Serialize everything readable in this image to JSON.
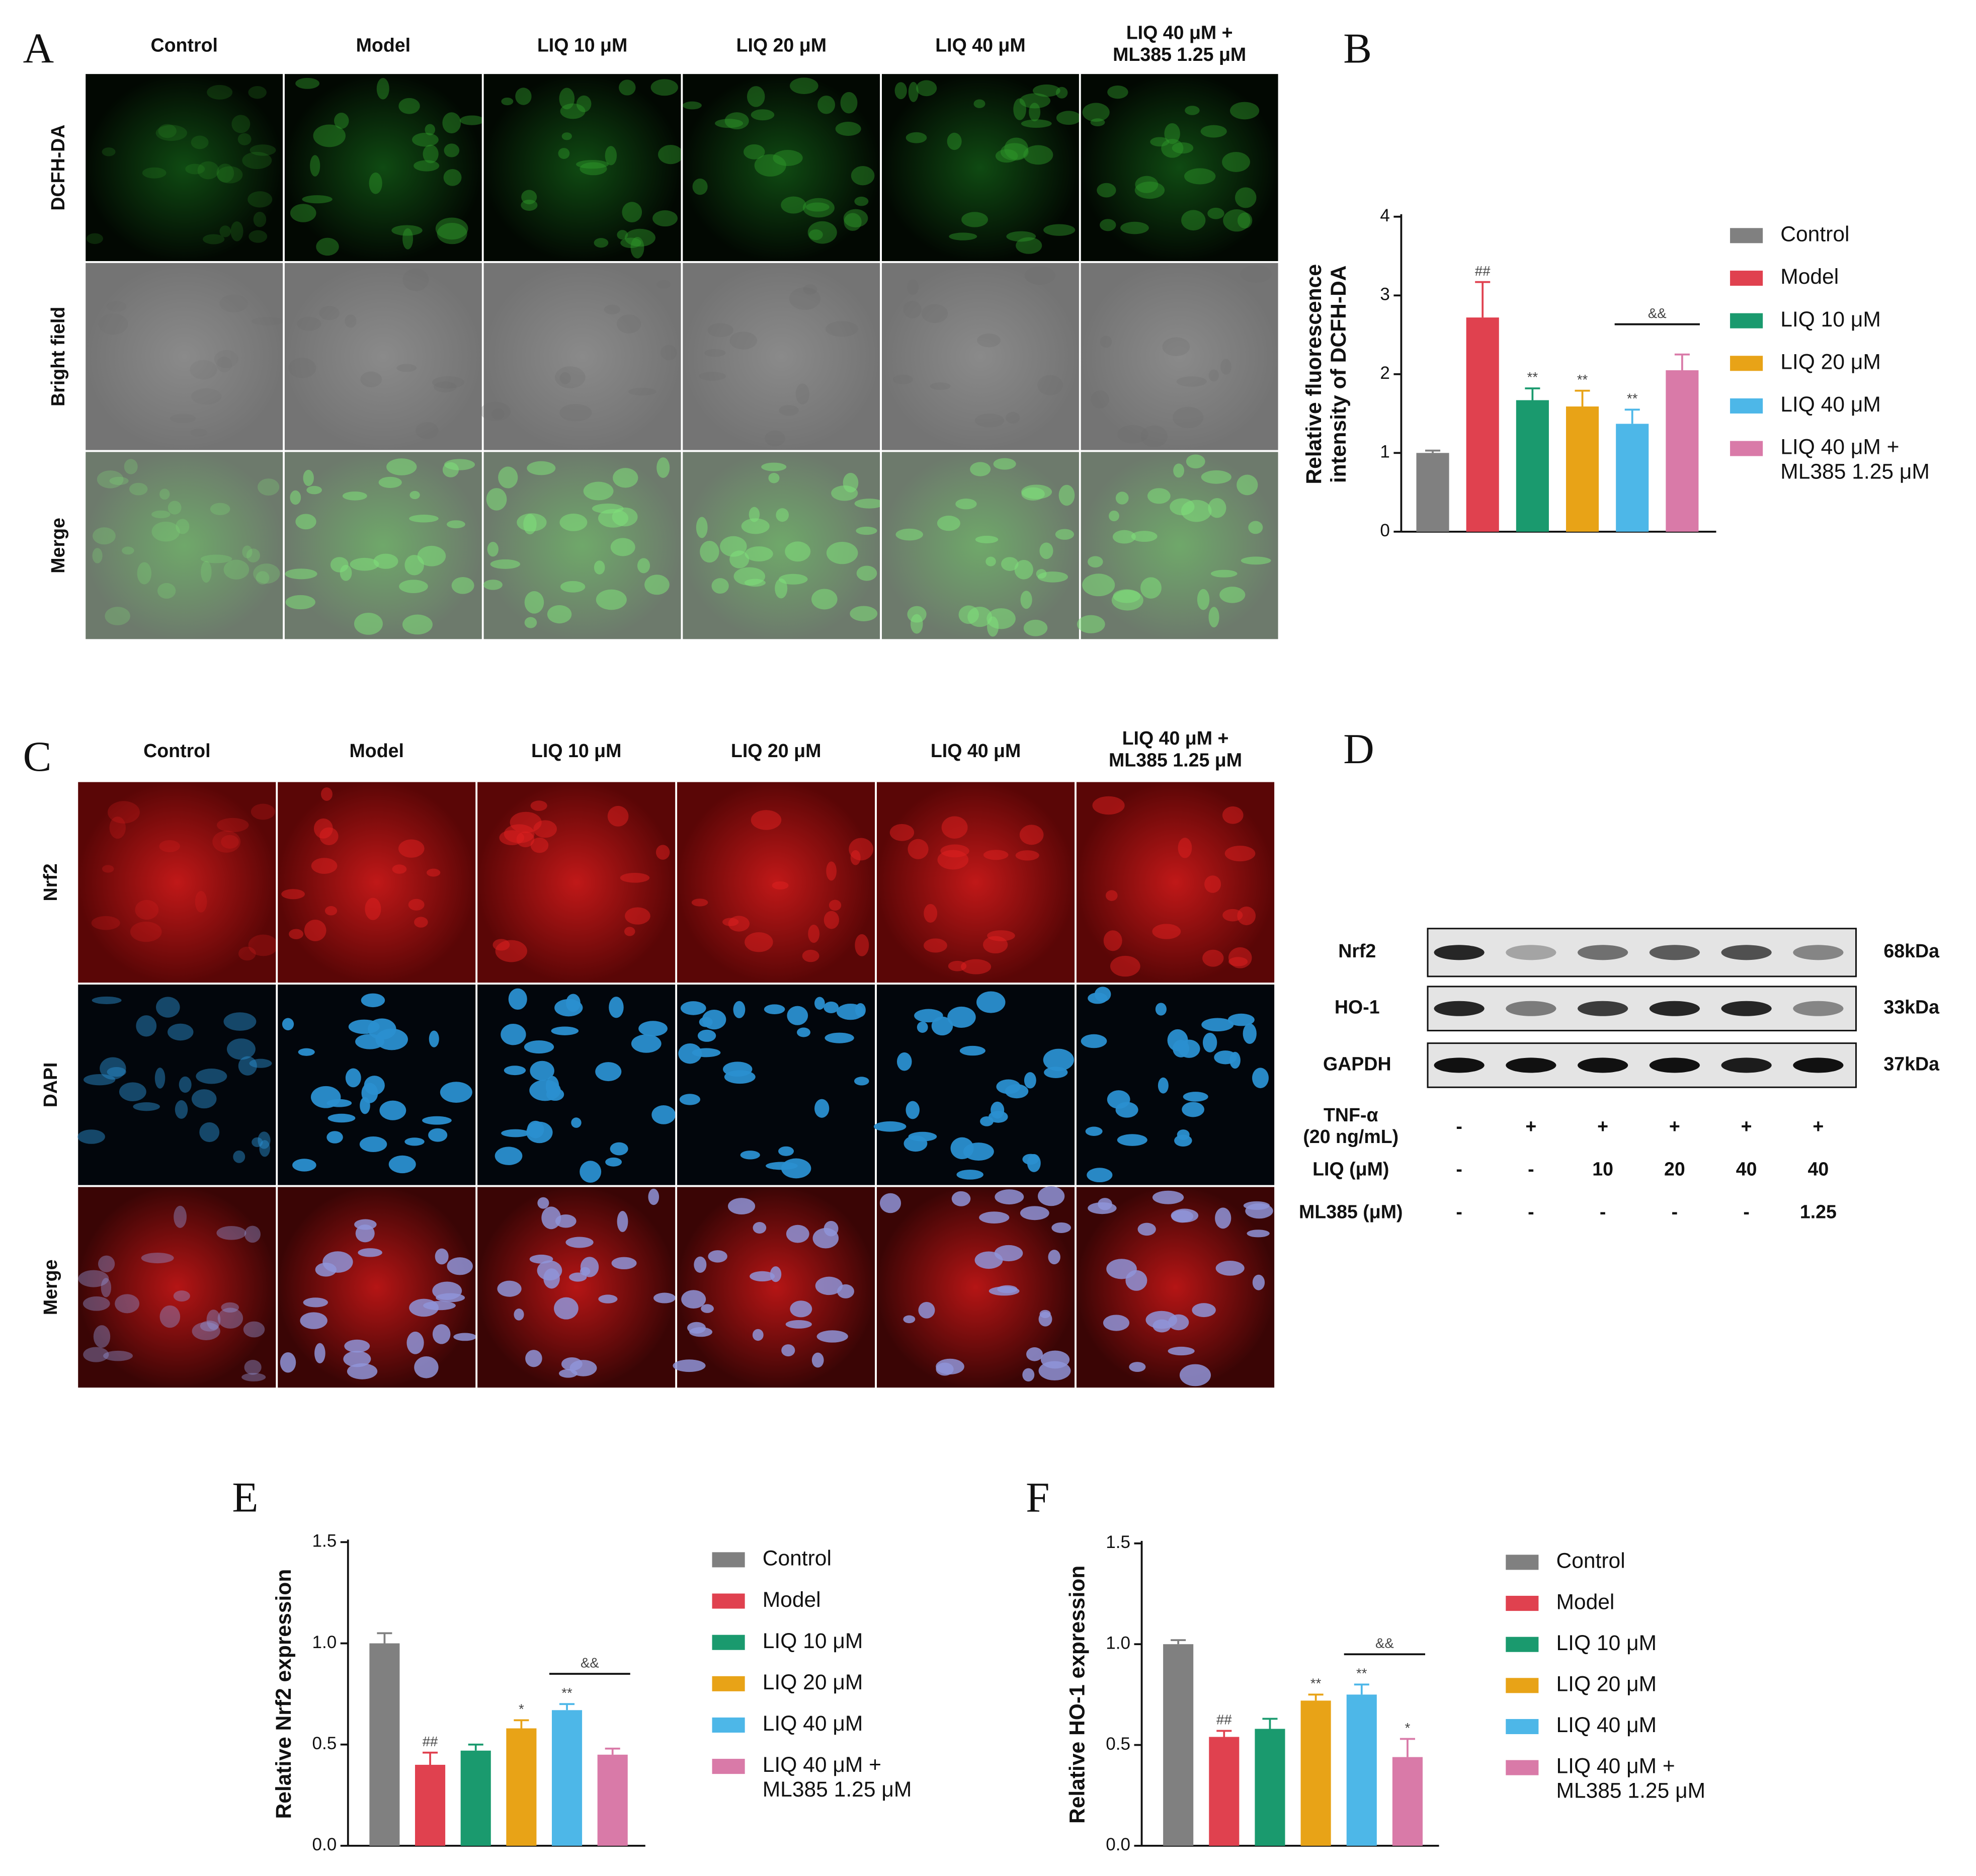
{
  "panel_a": {
    "label": "A",
    "columns": [
      "Control",
      "Model",
      "LIQ 10 μM",
      "LIQ 20 μM",
      "LIQ 40 μM",
      "LIQ 40 μM +\nML385 1.25 μM"
    ],
    "rows": [
      "DCFH-DA",
      "Bright field",
      "Merge"
    ]
  },
  "panel_c": {
    "label": "C",
    "columns": [
      "Control",
      "Model",
      "LIQ 10 μM",
      "LIQ 20 μM",
      "LIQ 40 μM",
      "LIQ 40 μM +\nML385 1.25 μM"
    ],
    "rows": [
      "Nrf2",
      "DAPI",
      "Merge"
    ]
  },
  "panel_d": {
    "label": "D",
    "bands": [
      {
        "name": "Nrf2",
        "size": "68kDa"
      },
      {
        "name": "HO-1",
        "size": "33kDa"
      },
      {
        "name": "GAPDH",
        "size": "37kDa"
      }
    ],
    "conditions": [
      {
        "name": "TNF-α\n(20 ng/mL)",
        "lanes": [
          "-",
          "+",
          "+",
          "+",
          "+",
          "+"
        ]
      },
      {
        "name": "LIQ (μM)",
        "lanes": [
          "-",
          "-",
          "10",
          "20",
          "40",
          "40"
        ]
      },
      {
        "name": "ML385 (μM)",
        "lanes": [
          "-",
          "-",
          "-",
          "-",
          "-",
          "1.25"
        ]
      }
    ]
  },
  "chart_data": [
    {
      "type": "bar",
      "panel": "B",
      "ylabel": "Relative fluorescence\nintensity of DCFH-DA",
      "categories": [
        "Control",
        "Model",
        "LIQ 10 μM",
        "LIQ 20 μM",
        "LIQ 40 μM",
        "LIQ 40 μM +\nML385 1.25 μM"
      ],
      "colors": [
        "#808080",
        "#e0414f",
        "#1a9a6e",
        "#e8a317",
        "#4db7e8",
        "#d97aa8"
      ],
      "values": [
        1.0,
        2.72,
        1.67,
        1.59,
        1.37,
        2.05
      ],
      "errors": [
        0.03,
        0.45,
        0.15,
        0.2,
        0.18,
        0.2
      ],
      "significance": [
        null,
        "##",
        "**",
        "**",
        "**",
        null
      ],
      "comparison": "&&",
      "ylim": [
        0,
        4
      ],
      "yticks": [
        0,
        1,
        2,
        3,
        4
      ]
    },
    {
      "type": "bar",
      "panel": "E",
      "ylabel": "Relative Nrf2 expression",
      "categories": [
        "Control",
        "Model",
        "LIQ 10 μM",
        "LIQ 20 μM",
        "LIQ 40 μM",
        "LIQ 40 μM +\nML385 1.25 μM"
      ],
      "colors": [
        "#808080",
        "#e0414f",
        "#1a9a6e",
        "#e8a317",
        "#4db7e8",
        "#d97aa8"
      ],
      "values": [
        1.0,
        0.4,
        0.47,
        0.58,
        0.67,
        0.45
      ],
      "errors": [
        0.05,
        0.06,
        0.03,
        0.04,
        0.03,
        0.03
      ],
      "significance": [
        null,
        "##",
        null,
        "*",
        "**",
        null
      ],
      "comparison": "&&",
      "ylim": [
        0,
        1.5
      ],
      "yticks": [
        {
          "value": 0,
          "label": "0.0"
        },
        {
          "value": 0.5,
          "label": "0.5"
        },
        {
          "value": 1,
          "label": "1.0"
        },
        {
          "value": 1.5,
          "label": "1.5"
        }
      ]
    },
    {
      "type": "bar",
      "panel": "F",
      "ylabel": "Relative HO-1 expression",
      "categories": [
        "Control",
        "Model",
        "LIQ 10 μM",
        "LIQ 20 μM",
        "LIQ 40 μM",
        "LIQ 40 μM +\nML385 1.25 μM"
      ],
      "colors": [
        "#808080",
        "#e0414f",
        "#1a9a6e",
        "#e8a317",
        "#4db7e8",
        "#d97aa8"
      ],
      "values": [
        1.0,
        0.54,
        0.58,
        0.72,
        0.75,
        0.44
      ],
      "errors": [
        0.02,
        0.03,
        0.05,
        0.03,
        0.05,
        0.09
      ],
      "significance": [
        null,
        "##",
        null,
        "**",
        "**",
        "*"
      ],
      "comparison": "&&",
      "ylim": [
        0,
        1.5
      ],
      "yticks": [
        {
          "value": 0,
          "label": "0.0"
        },
        {
          "value": 0.5,
          "label": "0.5"
        },
        {
          "value": 1,
          "label": "1.0"
        },
        {
          "value": 1.5,
          "label": "1.5"
        }
      ]
    }
  ]
}
